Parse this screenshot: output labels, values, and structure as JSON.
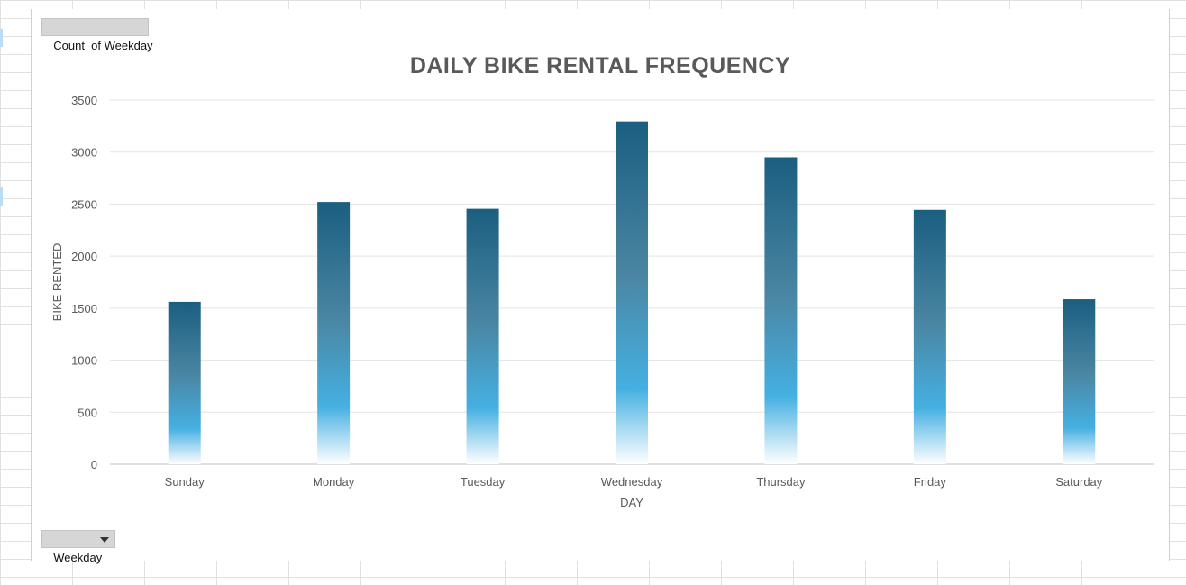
{
  "pivot": {
    "value_field_label": "Count  of Weekday",
    "axis_field_label": "Weekday"
  },
  "colors": {
    "bar_top": "#1b5e80",
    "bar_mid": "#4a86a3",
    "bar_light": "#45b0e2",
    "bar_bottom": "#ffffff",
    "gridline": "#e3e3e3",
    "text": "#595959",
    "title": "#595959"
  },
  "chart_data": {
    "type": "bar",
    "title": "DAILY BIKE RENTAL FREQUENCY",
    "xlabel": "DAY",
    "ylabel": "BIKE RENTED",
    "categories": [
      "Sunday",
      "Monday",
      "Tuesday",
      "Wednesday",
      "Thursday",
      "Friday",
      "Saturday"
    ],
    "values": [
      1560,
      2520,
      2455,
      3295,
      2950,
      2445,
      1585
    ],
    "ylim": [
      0,
      3500
    ],
    "yticks": [
      0,
      500,
      1000,
      1500,
      2000,
      2500,
      3000,
      3500
    ],
    "grid": true,
    "legend": "none"
  }
}
